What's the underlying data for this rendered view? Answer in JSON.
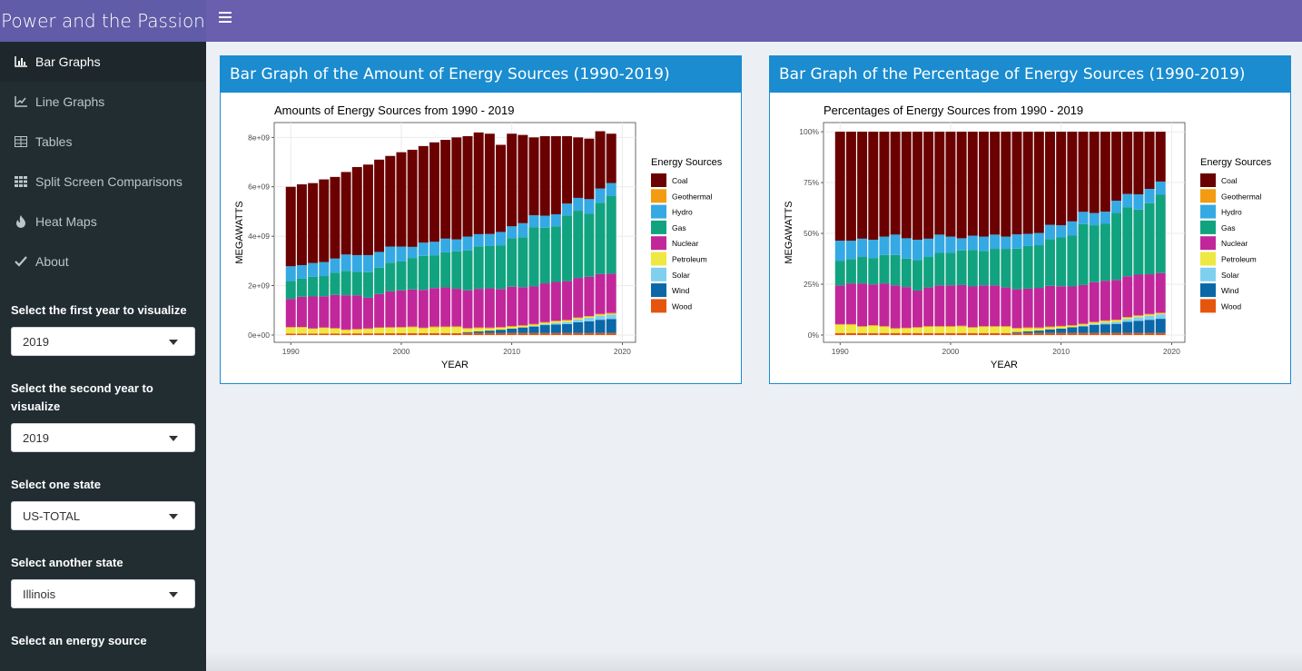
{
  "app": {
    "title": "Power and the Passion"
  },
  "sidebar": {
    "items": [
      {
        "label": "Bar Graphs",
        "icon": "bar-chart-icon",
        "active": true
      },
      {
        "label": "Line Graphs",
        "icon": "line-chart-icon",
        "active": false
      },
      {
        "label": "Tables",
        "icon": "table-icon",
        "active": false
      },
      {
        "label": "Split Screen Comparisons",
        "icon": "grid-icon",
        "active": false
      },
      {
        "label": "Heat Maps",
        "icon": "fire-icon",
        "active": false
      },
      {
        "label": "About",
        "icon": "check-icon",
        "active": false
      }
    ],
    "controls": [
      {
        "label": "Select the first year to visualize",
        "value": "2019"
      },
      {
        "label": "Select the second year to visualize",
        "value": "2019"
      },
      {
        "label": "Select one state",
        "value": "US-TOTAL"
      },
      {
        "label": "Select another state",
        "value": "Illinois"
      },
      {
        "label": "Select an energy source",
        "value": ""
      }
    ]
  },
  "boxes": [
    {
      "title": "Bar Graph of the Amount of Energy Sources (1990-2019)"
    },
    {
      "title": "Bar Graph of the Percentage of Energy Sources (1990-2019)"
    }
  ],
  "colors": {
    "header_left": "#605ca8",
    "navbar": "#6a5eaf",
    "sidebar": "#222d32",
    "box_accent": "#1a8ccf"
  },
  "chart_data": [
    {
      "type": "bar",
      "stacked": true,
      "title": "Amounts of Energy Sources from 1990 - 2019",
      "xlabel": "YEAR",
      "ylabel": "MEGAWATTS",
      "x_ticks": [
        "1990",
        "2000",
        "2010",
        "2020"
      ],
      "y_ticks": [
        "0e+00",
        "2e+09",
        "4e+09",
        "6e+09",
        "8e+09"
      ],
      "ylim": [
        0,
        8600000000
      ],
      "legend_title": "Energy Sources",
      "legend_position": "right",
      "series_order": [
        "Wood",
        "Wind",
        "Solar",
        "Petroleum",
        "Geothermal",
        "Nuclear",
        "Gas",
        "Hydro",
        "Coal"
      ],
      "series_colors": {
        "Coal": "#6b0000",
        "Geothermal": "#f39c12",
        "Hydro": "#35a9e3",
        "Gas": "#11a37f",
        "Nuclear": "#c1279b",
        "Petroleum": "#eee842",
        "Solar": "#7fcfee",
        "Wind": "#0a67a8",
        "Wood": "#e6550d"
      },
      "years": [
        1990,
        1991,
        1992,
        1993,
        1994,
        1995,
        1996,
        1997,
        1998,
        1999,
        2000,
        2001,
        2002,
        2003,
        2004,
        2005,
        2006,
        2007,
        2008,
        2009,
        2010,
        2011,
        2012,
        2013,
        2014,
        2015,
        2016,
        2017,
        2018,
        2019
      ],
      "totals": [
        6000000000,
        6100000000,
        6150000000,
        6300000000,
        6400000000,
        6600000000,
        6800000000,
        6900000000,
        7100000000,
        7250000000,
        7400000000,
        7500000000,
        7650000000,
        7800000000,
        7900000000,
        8000000000,
        8050000000,
        8200000000,
        8150000000,
        7700000000,
        8150000000,
        8100000000,
        8000000000,
        8050000000,
        8050000000,
        8050000000,
        8000000000,
        7950000000,
        8250000000,
        8150000000
      ],
      "label_legend": [
        "Coal",
        "Geothermal",
        "Hydro",
        "Gas",
        "Nuclear",
        "Petroleum",
        "Solar",
        "Wind",
        "Wood"
      ]
    },
    {
      "type": "bar",
      "stacked": true,
      "title": "Percentages of Energy Sources from 1990 - 2019",
      "xlabel": "YEAR",
      "ylabel": "MEGAWATTS",
      "x_ticks": [
        "1990",
        "2000",
        "2010",
        "2020"
      ],
      "y_ticks": [
        "0%",
        "25%",
        "50%",
        "75%",
        "100%"
      ],
      "ylim": [
        0,
        1
      ],
      "legend_title": "Energy Sources",
      "legend_position": "right",
      "label_legend": [
        "Coal",
        "Geothermal",
        "Hydro",
        "Gas",
        "Nuclear",
        "Petroleum",
        "Solar",
        "Wind",
        "Wood"
      ],
      "years": [
        1990,
        1991,
        1992,
        1993,
        1994,
        1995,
        1996,
        1997,
        1998,
        1999,
        2000,
        2001,
        2002,
        2003,
        2004,
        2005,
        2006,
        2007,
        2008,
        2009,
        2010,
        2011,
        2012,
        2013,
        2014,
        2015,
        2016,
        2017,
        2018,
        2019
      ],
      "shares": {
        "Wood": [
          0.01,
          0.01,
          0.01,
          0.01,
          0.01,
          0.01,
          0.01,
          0.01,
          0.01,
          0.01,
          0.01,
          0.01,
          0.01,
          0.01,
          0.01,
          0.01,
          0.01,
          0.01,
          0.01,
          0.01,
          0.01,
          0.01,
          0.01,
          0.01,
          0.01,
          0.01,
          0.01,
          0.01,
          0.01,
          0.01
        ],
        "Wind": [
          0.0,
          0.0,
          0.0,
          0.0,
          0.0,
          0.0,
          0.0,
          0.0,
          0.0,
          0.0,
          0.0,
          0.0,
          0.0,
          0.0,
          0.0,
          0.0,
          0.005,
          0.008,
          0.012,
          0.018,
          0.022,
          0.028,
          0.033,
          0.04,
          0.043,
          0.045,
          0.055,
          0.06,
          0.065,
          0.07
        ],
        "Solar": [
          0.0,
          0.0,
          0.0,
          0.0,
          0.0,
          0.0,
          0.0,
          0.0,
          0.0,
          0.0,
          0.0,
          0.0,
          0.0,
          0.0,
          0.0,
          0.0,
          0.0,
          0.0,
          0.0,
          0.0,
          0.0,
          0.0,
          0.003,
          0.005,
          0.008,
          0.01,
          0.014,
          0.018,
          0.02,
          0.022
        ],
        "Petroleum": [
          0.04,
          0.04,
          0.03,
          0.035,
          0.03,
          0.02,
          0.022,
          0.025,
          0.03,
          0.03,
          0.03,
          0.032,
          0.025,
          0.03,
          0.03,
          0.03,
          0.016,
          0.016,
          0.011,
          0.01,
          0.009,
          0.007,
          0.006,
          0.006,
          0.007,
          0.007,
          0.006,
          0.005,
          0.005,
          0.004
        ],
        "Geothermal": [
          0.004,
          0.004,
          0.004,
          0.004,
          0.004,
          0.004,
          0.004,
          0.004,
          0.004,
          0.004,
          0.004,
          0.004,
          0.004,
          0.004,
          0.004,
          0.004,
          0.004,
          0.004,
          0.004,
          0.004,
          0.004,
          0.004,
          0.004,
          0.004,
          0.004,
          0.004,
          0.004,
          0.004,
          0.004,
          0.004
        ],
        "Nuclear": [
          0.19,
          0.2,
          0.21,
          0.2,
          0.21,
          0.21,
          0.2,
          0.18,
          0.19,
          0.2,
          0.2,
          0.2,
          0.2,
          0.2,
          0.2,
          0.19,
          0.19,
          0.19,
          0.195,
          0.2,
          0.195,
          0.19,
          0.19,
          0.195,
          0.195,
          0.195,
          0.2,
          0.2,
          0.195,
          0.195
        ],
        "Gas": [
          0.12,
          0.12,
          0.13,
          0.13,
          0.14,
          0.15,
          0.14,
          0.15,
          0.15,
          0.16,
          0.16,
          0.17,
          0.18,
          0.17,
          0.18,
          0.19,
          0.2,
          0.21,
          0.21,
          0.23,
          0.24,
          0.25,
          0.3,
          0.28,
          0.28,
          0.33,
          0.34,
          0.32,
          0.35,
          0.385
        ],
        "Hydro": [
          0.1,
          0.09,
          0.09,
          0.09,
          0.09,
          0.1,
          0.1,
          0.1,
          0.09,
          0.09,
          0.08,
          0.06,
          0.07,
          0.07,
          0.07,
          0.06,
          0.07,
          0.06,
          0.06,
          0.07,
          0.06,
          0.07,
          0.06,
          0.06,
          0.06,
          0.06,
          0.065,
          0.075,
          0.07,
          0.065
        ]
      }
    }
  ]
}
